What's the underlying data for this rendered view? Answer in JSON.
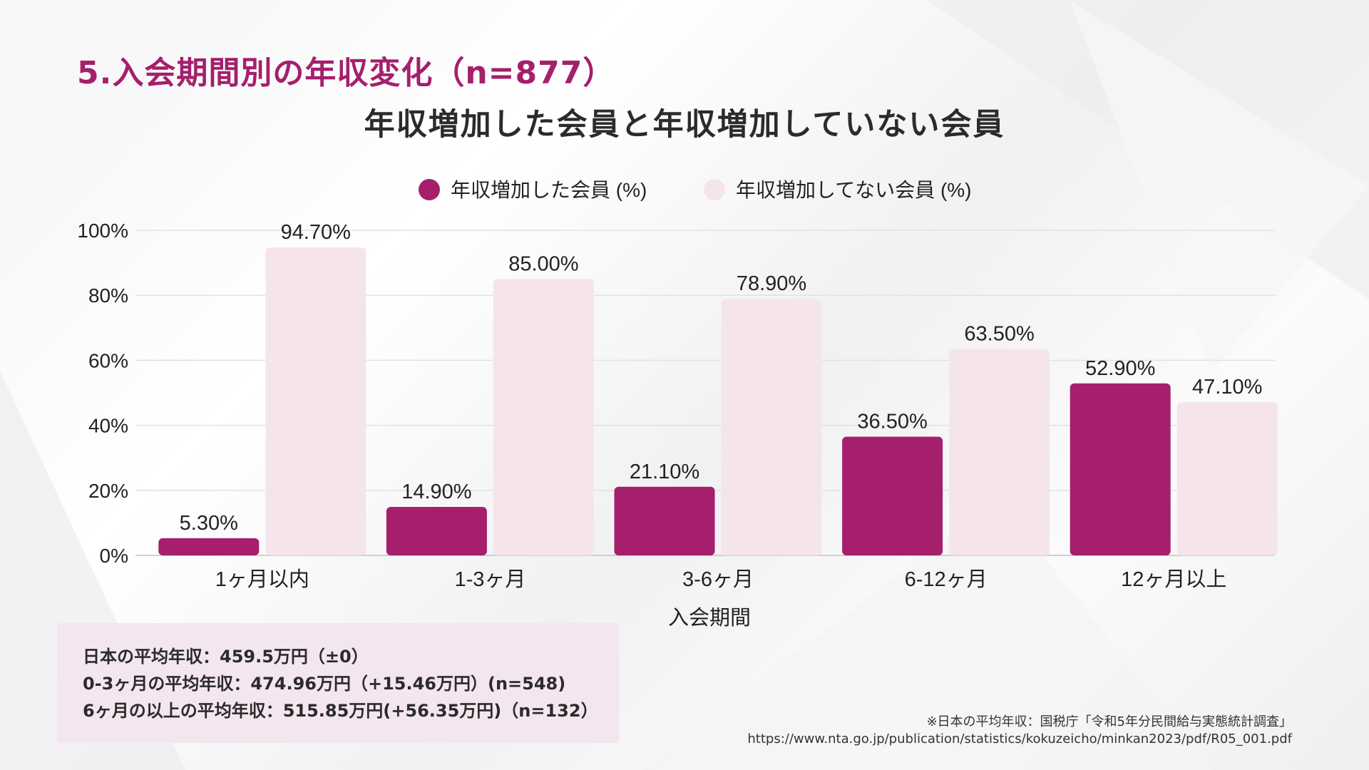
{
  "page": {
    "heading": "5.入会期間別の年収変化（n=877）"
  },
  "chart_data": {
    "type": "bar",
    "title": "年収増加した会員と年収増加していない会員",
    "xlabel": "入会期間",
    "ylabel": "",
    "categories": [
      "1ヶ月以内",
      "1-3ヶ月",
      "3-6ヶ月",
      "6-12ヶ月",
      "12ヶ月以上"
    ],
    "series": [
      {
        "name": "年収増加した会員 (%)",
        "color": "#a51f6c",
        "values": [
          5.3,
          14.9,
          21.1,
          36.5,
          52.9
        ],
        "labels": [
          "5.30%",
          "14.90%",
          "21.10%",
          "36.50%",
          "52.90%"
        ]
      },
      {
        "name": "年収増加してない会員 (%)",
        "color": "#f5e4ec",
        "values": [
          94.7,
          85.0,
          78.9,
          63.5,
          47.1
        ],
        "labels": [
          "94.70%",
          "85.00%",
          "78.90%",
          "63.50%",
          "47.10%"
        ]
      }
    ],
    "ylim": [
      0,
      100
    ],
    "yticks": [
      0,
      20,
      40,
      60,
      80,
      100
    ],
    "ytick_labels": [
      "0%",
      "20%",
      "40%",
      "60%",
      "80%",
      "100%"
    ],
    "grid": true,
    "legend": "top-center"
  },
  "info_box": {
    "lines": [
      "日本の平均年収：459.5万円（±0）",
      "0-3ヶ月の平均年収：474.96万円（+15.46万円）(n=548)",
      "6ヶ月の以上の平均年収：515.85万円(+56.35万円)（n=132）"
    ]
  },
  "source": {
    "note": "※日本の平均年収：国税庁「令和5年分民間給与実態統計調査」",
    "url": "https://www.nta.go.jp/publication/statistics/kokuzeicho/minkan2023/pdf/R05_001.pdf"
  }
}
